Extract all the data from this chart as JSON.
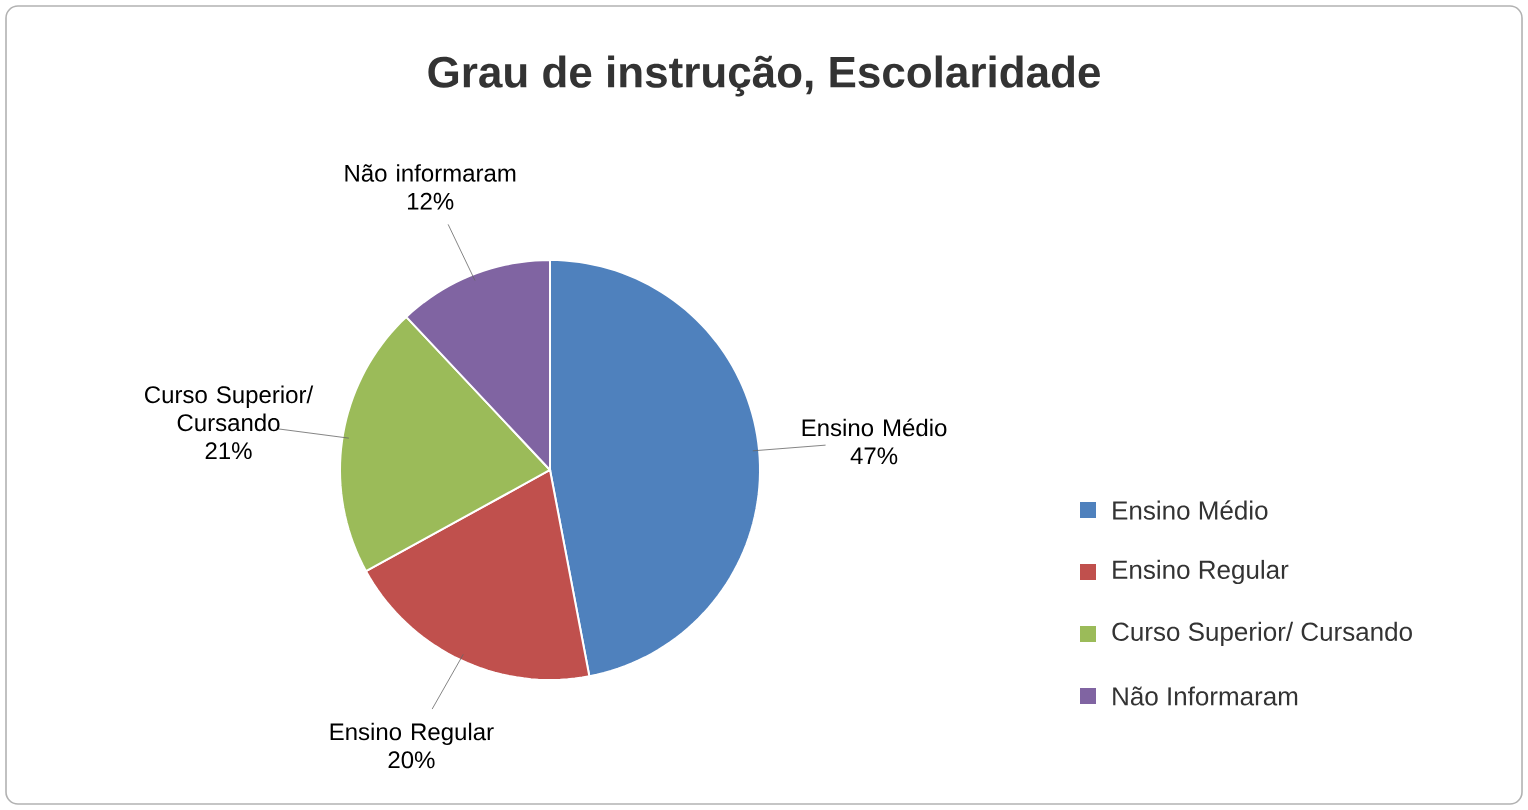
{
  "chart_data": {
    "type": "pie",
    "title": "Grau de instrução, Escolaridade",
    "categories": [
      "Ensino Médio",
      "Ensino Regular",
      "Curso Superior/ Cursando",
      "Não Informaram"
    ],
    "values": [
      47,
      20,
      21,
      12
    ],
    "colors": [
      "#4f81bd",
      "#c0504d",
      "#9bbb59",
      "#8064a2"
    ],
    "value_labels": [
      "47%",
      "20%",
      "21%",
      "12%"
    ],
    "annotations": [
      "Ensino Médio",
      "Ensino Regular",
      "Curso Superior/ Cursando",
      "Não informaram"
    ],
    "legend": "right"
  }
}
